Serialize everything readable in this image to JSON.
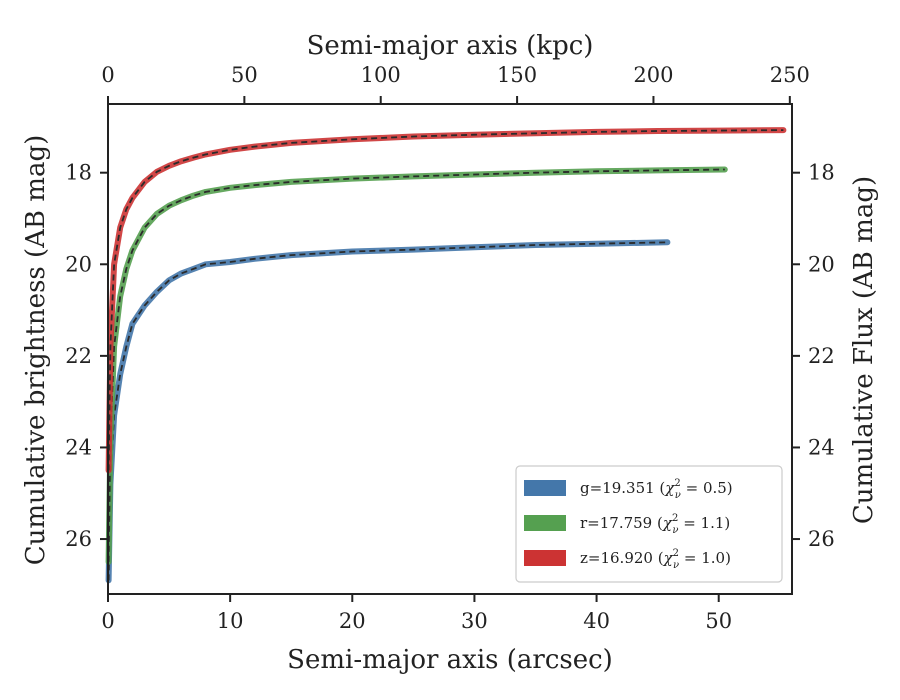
{
  "chart_data": {
    "type": "line",
    "xlabel_bottom": "Semi-major axis (arcsec)",
    "xlabel_top": "Semi-major axis (kpc)",
    "ylabel_left": "Cumulative brightness (AB mag)",
    "ylabel_right": "Cumulative Flux (AB mag)",
    "xlim_bottom": [
      0,
      56
    ],
    "xlim_top": [
      0,
      250.8
    ],
    "ylim": [
      27.2,
      16.5
    ],
    "y_inverted": true,
    "xticks_bottom": [
      0,
      10,
      20,
      30,
      40,
      50
    ],
    "xticks_top": [
      0,
      50,
      100,
      150,
      200,
      250
    ],
    "yticks": [
      18,
      20,
      22,
      24,
      26
    ],
    "legend_position": "lower right",
    "grid": false,
    "series": [
      {
        "name": "g",
        "legend": "g=19.351 (χ²_ν = 0.5)",
        "legend_main": "g=19.351 (",
        "legend_sup": "2",
        "legend_sub": "ν",
        "legend_tail": " = 0.5)",
        "color": "#4477aa",
        "x": [
          0.05,
          0.2,
          0.5,
          1,
          1.5,
          2,
          3,
          4,
          5,
          6,
          7,
          8,
          10,
          12,
          15,
          20,
          25,
          30,
          35,
          40,
          45.8
        ],
        "y": [
          26.9,
          24.8,
          23.3,
          22.4,
          21.8,
          21.3,
          20.9,
          20.6,
          20.35,
          20.2,
          20.1,
          20.0,
          19.95,
          19.88,
          19.8,
          19.72,
          19.68,
          19.63,
          19.58,
          19.55,
          19.52
        ]
      },
      {
        "name": "r",
        "legend": "r=17.759 (χ²_ν = 1.1)",
        "legend_main": "r=17.759 (",
        "legend_sup": "2",
        "legend_sub": "ν",
        "legend_tail": " = 1.1)",
        "color": "#55a050",
        "x": [
          0.05,
          0.2,
          0.5,
          1,
          1.5,
          2,
          3,
          4,
          5,
          6,
          7,
          8,
          10,
          12,
          15,
          20,
          25,
          30,
          35,
          40,
          45,
          50.5
        ],
        "y": [
          26.5,
          23.8,
          21.8,
          20.7,
          20.1,
          19.7,
          19.2,
          18.9,
          18.72,
          18.6,
          18.5,
          18.42,
          18.33,
          18.27,
          18.2,
          18.13,
          18.08,
          18.04,
          18.0,
          17.97,
          17.95,
          17.93
        ]
      },
      {
        "name": "z",
        "legend": "z=16.920 (χ²_ν = 1.0)",
        "legend_main": "z=16.920 (",
        "legend_sup": "2",
        "legend_sub": "ν",
        "legend_tail": " = 1.0)",
        "color": "#cc3333",
        "x": [
          0.05,
          0.2,
          0.5,
          1,
          1.5,
          2,
          3,
          4,
          5,
          6,
          7,
          8,
          10,
          12,
          15,
          20,
          25,
          30,
          35,
          40,
          45,
          50,
          55.3
        ],
        "y": [
          24.5,
          21.8,
          20.0,
          19.2,
          18.8,
          18.55,
          18.2,
          17.98,
          17.85,
          17.75,
          17.67,
          17.6,
          17.5,
          17.43,
          17.35,
          17.27,
          17.21,
          17.17,
          17.14,
          17.11,
          17.09,
          17.08,
          17.07
        ]
      }
    ]
  }
}
